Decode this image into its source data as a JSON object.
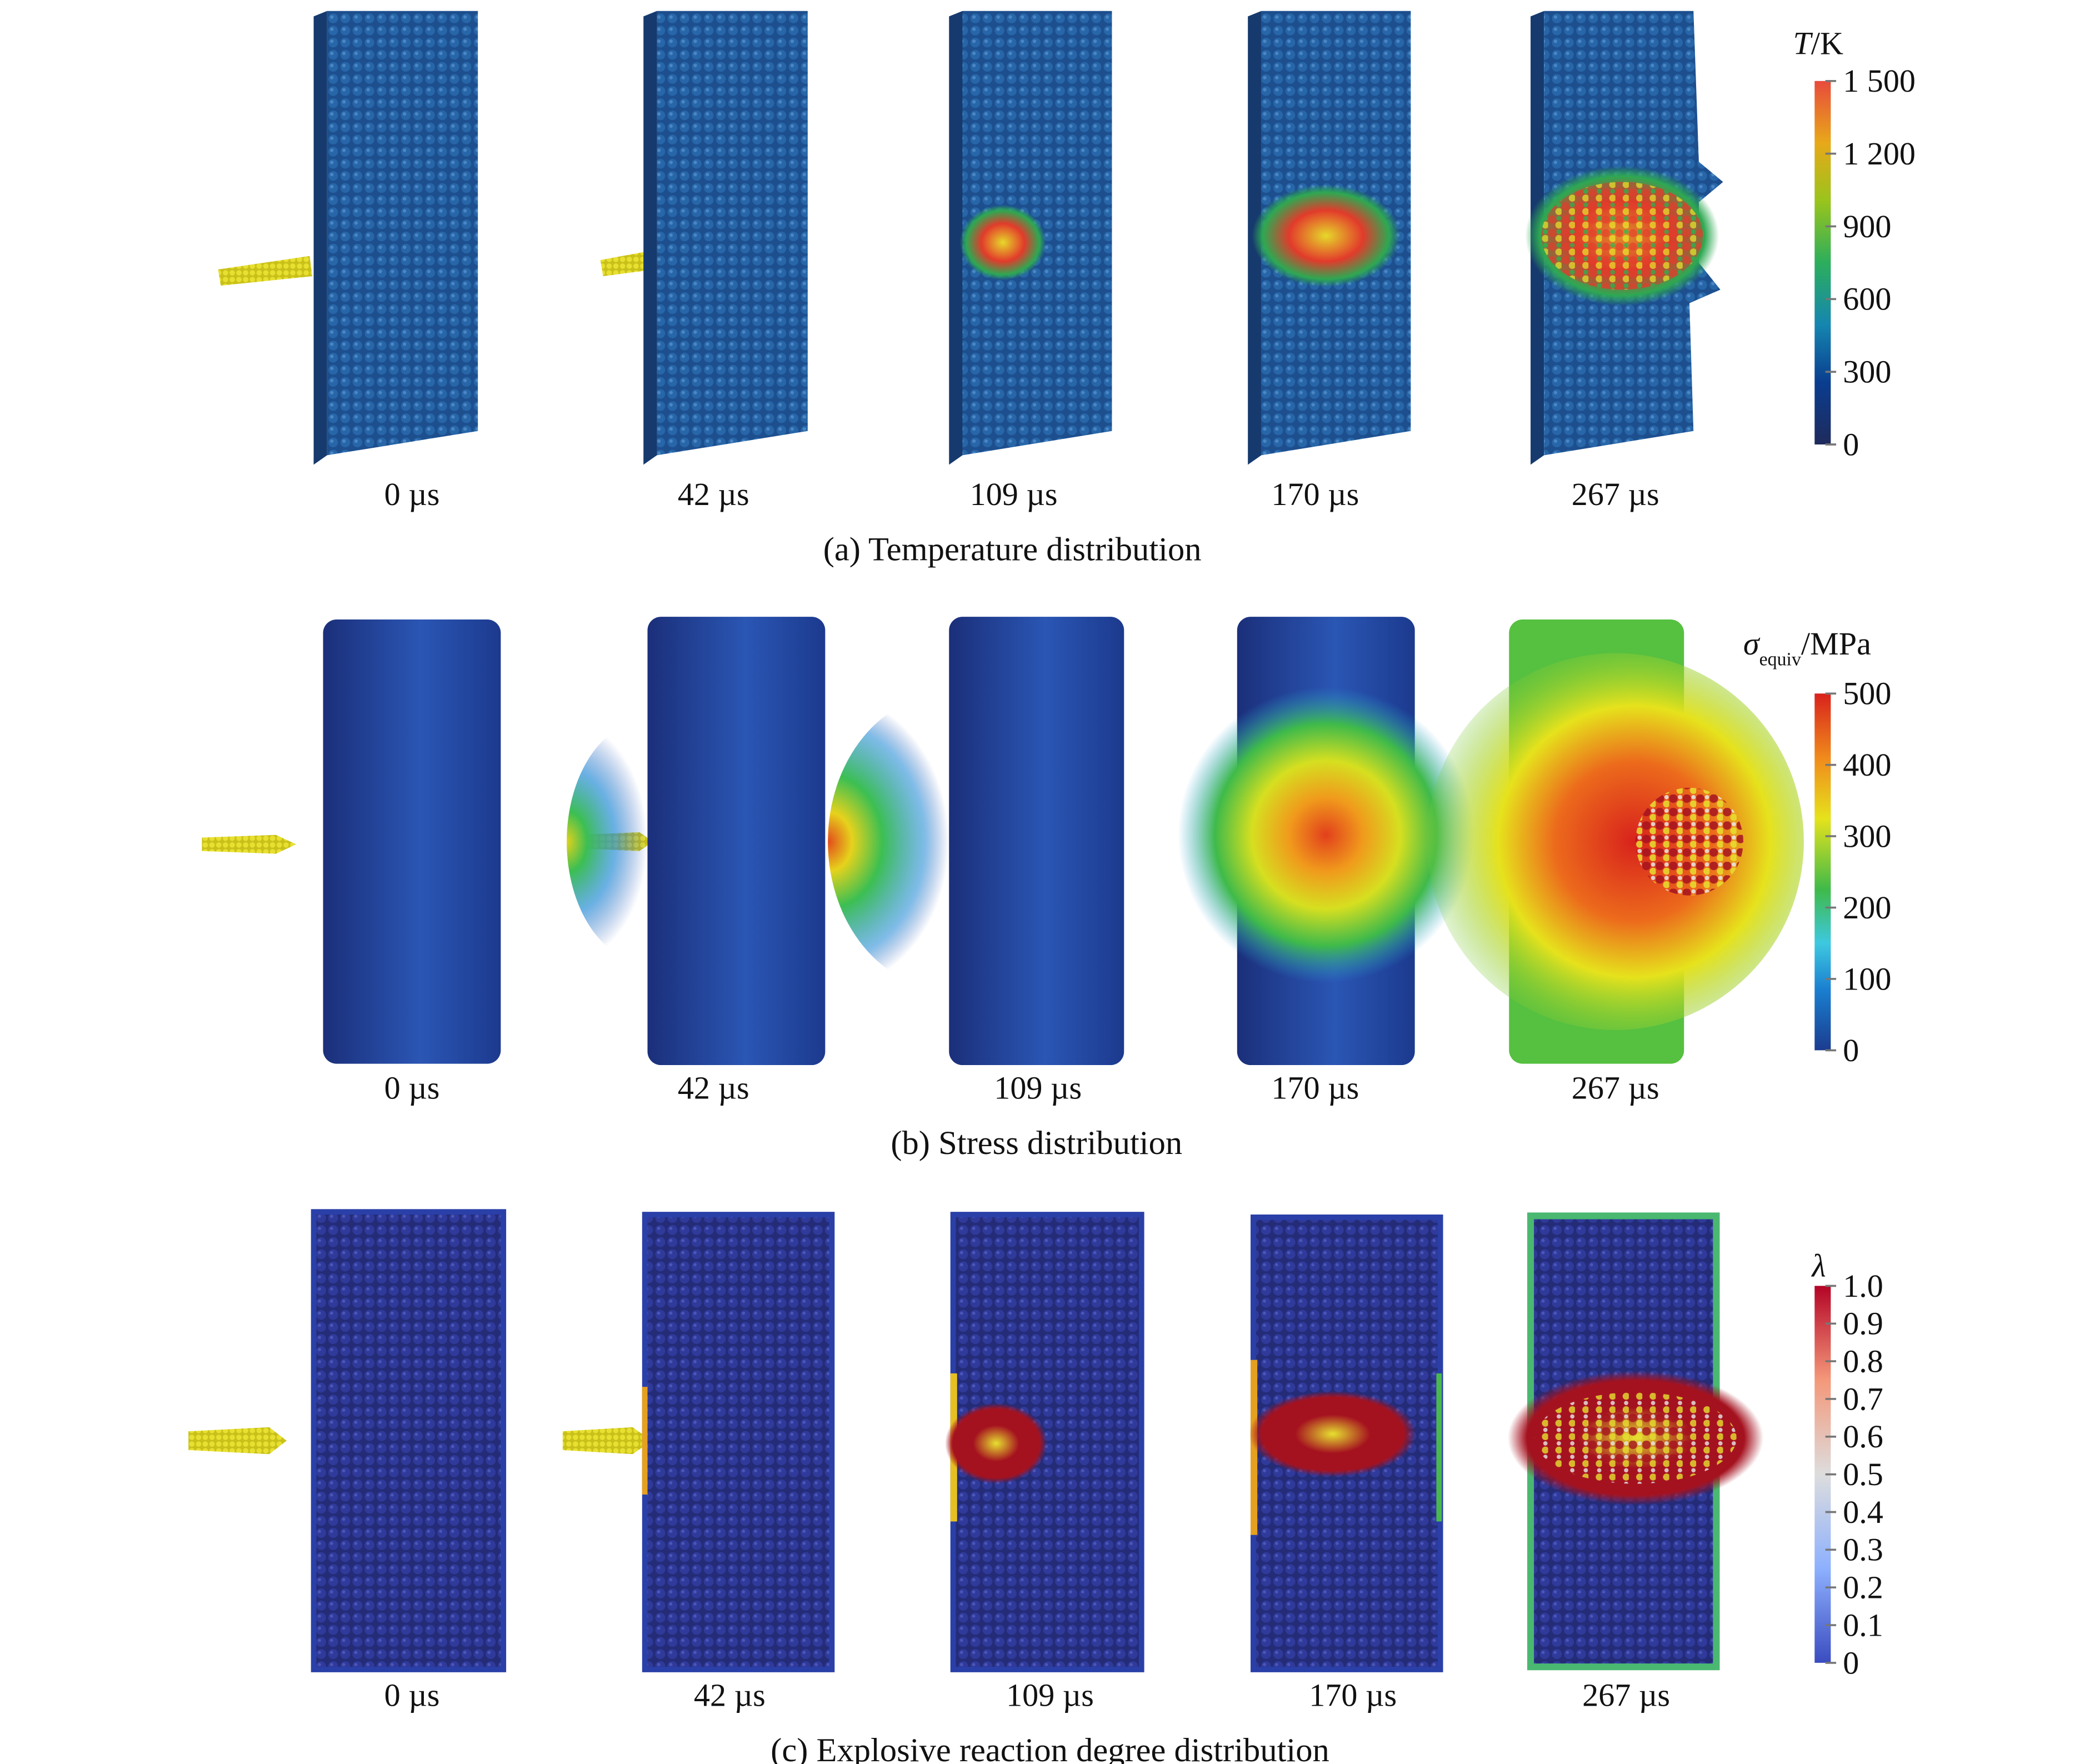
{
  "figure": {
    "panels": [
      {
        "id": "a",
        "caption": "(a) Temperature distribution",
        "times": [
          "0 µs",
          "42 µs",
          "109 µs",
          "170 µs",
          "267 µs"
        ],
        "colorbar": {
          "title_symbol": "T",
          "title_unit": "/K",
          "ticks": [
            "1 500",
            "1 200",
            "900",
            "600",
            "300",
            "0"
          ],
          "range": [
            0,
            1500
          ],
          "colormap": [
            "#1f2a5c",
            "#0a3d8f",
            "#1586b0",
            "#2cae5c",
            "#9ac41c",
            "#e8a81a",
            "#e84a3c"
          ]
        }
      },
      {
        "id": "b",
        "caption": "(b) Stress distribution",
        "times": [
          "0 µs",
          "42 µs",
          "109 µs",
          "170 µs",
          "267 µs"
        ],
        "colorbar": {
          "title_symbol": "σ",
          "title_sub": "equiv",
          "title_unit": "/MPa",
          "ticks": [
            "500",
            "400",
            "300",
            "200",
            "100",
            "0"
          ],
          "range": [
            0,
            500
          ],
          "colormap": [
            "#1b3c8f",
            "#1a7fd0",
            "#3ec8e0",
            "#3fba4a",
            "#e6e21c",
            "#f08a1c",
            "#d8221c"
          ]
        }
      },
      {
        "id": "c",
        "caption": "(c) Explosive reaction degree distribution",
        "times": [
          "0 µs",
          "42 µs",
          "109 µs",
          "170 µs",
          "267 µs"
        ],
        "colorbar": {
          "title_symbol": "λ",
          "ticks": [
            "1.0",
            "0.9",
            "0.8",
            "0.7",
            "0.6",
            "0.5",
            "0.4",
            "0.3",
            "0.2",
            "0.1",
            "0"
          ],
          "range": [
            0,
            1
          ],
          "colormap": [
            "#3b4cc0",
            "#8db0fe",
            "#dddddd",
            "#f4987a",
            "#b40426"
          ]
        }
      }
    ]
  }
}
